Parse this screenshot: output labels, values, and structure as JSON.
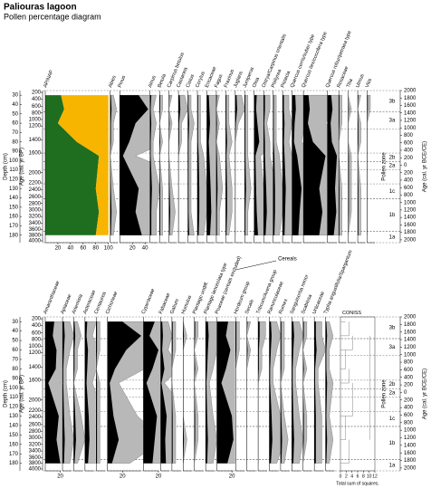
{
  "chart_data": {
    "type": "pollen",
    "title": "Paliouras lagoon",
    "subtitle": "Pollen percentage diagram",
    "depth_label": "Depth (cm)",
    "age_bp_label": "Age (cal. yr BP)",
    "age_ce_label": "Age (cal. yr BCE/CE)",
    "zone_label": "Pollen zone",
    "fill_color": "#000000",
    "exaggeration_color": "#b8b8b8",
    "depth_lim": [
      25,
      188
    ],
    "depth_ticks": [
      30,
      40,
      50,
      60,
      70,
      80,
      90,
      100,
      110,
      120,
      130,
      140,
      150,
      160,
      170,
      180
    ],
    "age_bp_ticks": [
      {
        "age": 200,
        "depth": 27
      },
      {
        "age": 400,
        "depth": 34
      },
      {
        "age": 600,
        "depth": 42
      },
      {
        "age": 800,
        "depth": 49
      },
      {
        "age": 1000,
        "depth": 56
      },
      {
        "age": 1200,
        "depth": 63
      },
      {
        "age": 1400,
        "depth": 78
      },
      {
        "age": 1600,
        "depth": 92
      },
      {
        "age": 2000,
        "depth": 113
      },
      {
        "age": 2200,
        "depth": 124
      },
      {
        "age": 2400,
        "depth": 131
      },
      {
        "age": 2600,
        "depth": 139
      },
      {
        "age": 2800,
        "depth": 146
      },
      {
        "age": 3000,
        "depth": 153
      },
      {
        "age": 3200,
        "depth": 160
      },
      {
        "age": 3400,
        "depth": 167
      },
      {
        "age": 3600,
        "depth": 174
      },
      {
        "age": 3800,
        "depth": 180
      },
      {
        "age": 4000,
        "depth": 186
      }
    ],
    "age_ce_ticks": [
      {
        "age": 2000,
        "depth": 25
      },
      {
        "age": 1800,
        "depth": 33
      },
      {
        "age": 1600,
        "depth": 41
      },
      {
        "age": 1400,
        "depth": 49
      },
      {
        "age": 1200,
        "depth": 57
      },
      {
        "age": 1000,
        "depth": 65
      },
      {
        "age": 800,
        "depth": 73
      },
      {
        "age": 600,
        "depth": 81
      },
      {
        "age": 400,
        "depth": 89
      },
      {
        "age": 200,
        "depth": 97
      },
      {
        "age": 0,
        "depth": 105
      },
      {
        "age": 200,
        "depth": 113
      },
      {
        "age": 400,
        "depth": 121
      },
      {
        "age": 600,
        "depth": 129
      },
      {
        "age": 800,
        "depth": 137
      },
      {
        "age": 1000,
        "depth": 145
      },
      {
        "age": 1200,
        "depth": 153
      },
      {
        "age": 1400,
        "depth": 161
      },
      {
        "age": 1600,
        "depth": 169
      },
      {
        "age": 1800,
        "depth": 177
      },
      {
        "age": 2000,
        "depth": 185
      }
    ],
    "zones": [
      {
        "name": "3b",
        "top": 25,
        "bottom": 48
      },
      {
        "name": "3a",
        "top": 48,
        "bottom": 66
      },
      {
        "name": "2b",
        "top": 92,
        "bottom": 101
      },
      {
        "name": "2a",
        "top": 101,
        "bottom": 110
      },
      {
        "name": "1c",
        "top": 125,
        "bottom": 141
      },
      {
        "name": "1b",
        "top": 141,
        "bottom": 176
      },
      {
        "name": "1a",
        "top": 176,
        "bottom": 188
      }
    ],
    "depths": [
      30,
      45,
      60,
      80,
      95,
      130,
      155,
      180
    ],
    "panels": [
      {
        "taxa": [
          {
            "name": "AP/NAP",
            "ap": [
              25,
              30,
              20,
              50,
              85,
              80,
              85,
              80
            ],
            "nap": [
              75,
              70,
              80,
              50,
              15,
              20,
              15,
              20
            ],
            "ap_color": "#1f6e1f",
            "nap_color": "#f7b500",
            "xticks": [
              20,
              40,
              60,
              80,
              100
            ]
          },
          {
            "name": "Abies",
            "values": [
              1,
              2,
              1,
              1,
              0,
              1,
              2,
              1
            ]
          },
          {
            "name": "Pinus",
            "values": [
              30,
              45,
              25,
              15,
              5,
              30,
              25,
              35
            ],
            "xticks": [
              20,
              40
            ]
          },
          {
            "name": "Alnus",
            "values": [
              2,
              1,
              2,
              1,
              1,
              3,
              2,
              2
            ]
          },
          {
            "name": "Betula",
            "values": [
              1,
              1,
              0,
              1,
              0,
              1,
              1,
              1
            ]
          },
          {
            "name": "Carpinus betulus",
            "values": [
              1,
              0,
              1,
              0,
              0,
              1,
              2,
              1
            ]
          },
          {
            "name": "Castanea",
            "values": [
              2,
              3,
              1,
              1,
              0,
              0,
              0,
              0
            ]
          },
          {
            "name": "Cistus",
            "values": [
              1,
              1,
              2,
              1,
              1,
              1,
              1,
              2
            ]
          },
          {
            "name": "Corylus",
            "values": [
              1,
              1,
              1,
              1,
              2,
              3,
              3,
              2
            ]
          },
          {
            "name": "Ericaceae",
            "values": [
              3,
              4,
              5,
              3,
              4,
              6,
              7,
              5
            ]
          },
          {
            "name": "Fagus",
            "values": [
              1,
              0,
              1,
              0,
              1,
              2,
              1,
              1
            ]
          },
          {
            "name": "Fraxinus",
            "values": [
              1,
              1,
              1,
              2,
              1,
              2,
              2,
              1
            ]
          },
          {
            "name": "Juglans",
            "values": [
              2,
              3,
              1,
              0,
              0,
              0,
              0,
              0
            ]
          },
          {
            "name": "Juniperus",
            "values": [
              1,
              1,
              1,
              1,
              1,
              2,
              1,
              1
            ]
          },
          {
            "name": "Olea",
            "values": [
              4,
              3,
              5,
              8,
              2,
              3,
              4,
              6
            ]
          },
          {
            "name": "Ostrya/Carpinus orientalis",
            "values": [
              2,
              2,
              1,
              2,
              2,
              4,
              5,
              3
            ]
          },
          {
            "name": "Phillyrea",
            "values": [
              1,
              1,
              1,
              1,
              2,
              3,
              3,
              2
            ]
          },
          {
            "name": "Pistacia",
            "values": [
              2,
              2,
              3,
              2,
              3,
              5,
              4,
              3
            ]
          },
          {
            "name": "Quercus cerris/suber type",
            "values": [
              5,
              6,
              4,
              3,
              8,
              15,
              12,
              10
            ]
          },
          {
            "name": "Quercus ilex/coccifera type",
            "values": [
              8,
              10,
              7,
              15,
              35,
              25,
              30,
              25
            ]
          },
          {
            "name": "Quercus robur/petraea type",
            "values": [
              6,
              8,
              5,
              7,
              15,
              12,
              14,
              10
            ]
          },
          {
            "name": "Rosaceae",
            "values": [
              1,
              1,
              1,
              0,
              0,
              1,
              1,
              1
            ]
          },
          {
            "name": "Tilia",
            "values": [
              0,
              1,
              0,
              0,
              1,
              1,
              1,
              0
            ]
          },
          {
            "name": "Ulmus",
            "values": [
              1,
              0,
              1,
              1,
              0,
              1,
              1,
              1
            ]
          },
          {
            "name": "Vitis",
            "values": [
              1,
              1,
              0,
              0,
              0,
              0,
              0,
              0
            ]
          }
        ]
      },
      {
        "taxa": [
          {
            "name": "Amaranthaceae",
            "values": [
              12,
              10,
              15,
              14,
              4,
              18,
              15,
              20
            ],
            "xticks": [
              20
            ]
          },
          {
            "name": "Apiaceae",
            "values": [
              2,
              3,
              2,
              1,
              1,
              2,
              3,
              2
            ]
          },
          {
            "name": "Artemisia",
            "values": [
              1,
              2,
              1,
              1,
              0,
              2,
              3,
              1
            ]
          },
          {
            "name": "Asteraceae",
            "values": [
              3,
              2,
              4,
              3,
              2,
              5,
              6,
              4
            ]
          },
          {
            "name": "Centaurea",
            "values": [
              1,
              1,
              1,
              0,
              1,
              1,
              1,
              1
            ]
          },
          {
            "name": "Cichorieae",
            "values": [
              20,
              45,
              25,
              10,
              3,
              8,
              15,
              6
            ],
            "xticks": [
              20
            ]
          },
          {
            "name": "Cyperaceae",
            "values": [
              15,
              8,
              20,
              12,
              4,
              18,
              15,
              12
            ],
            "xticks": [
              20
            ]
          },
          {
            "name": "Fabaceae",
            "values": [
              2,
              3,
              2,
              5,
              1,
              8,
              6,
              7
            ]
          },
          {
            "name": "Galium",
            "values": [
              1,
              1,
              1,
              0,
              0,
              1,
              1,
              1
            ]
          },
          {
            "name": "Humulus",
            "values": [
              0,
              1,
              0,
              0,
              0,
              0,
              1,
              0
            ]
          },
          {
            "name": "Plantago undiff.",
            "values": [
              1,
              1,
              0,
              1,
              0,
              1,
              1,
              0
            ]
          },
          {
            "name": "Plantago lanceolata type",
            "values": [
              3,
              4,
              3,
              2,
              1,
              2,
              3,
              2
            ]
          },
          {
            "name": "Poaceae (cereals excluded)",
            "values": [
              15,
              12,
              18,
              12,
              6,
              20,
              22,
              14
            ],
            "xticks": [
              20
            ]
          },
          {
            "name": "Hordeum group",
            "values": [
              1,
              1,
              1,
              0,
              0,
              0,
              0,
              0
            ],
            "cereal": true
          },
          {
            "name": "Secale",
            "values": [
              1,
              0,
              1,
              0,
              0,
              0,
              0,
              0
            ],
            "cereal": true
          },
          {
            "name": "Triticum/Avena group",
            "values": [
              2,
              2,
              1,
              1,
              0,
              0,
              0,
              0
            ],
            "cereal": true
          },
          {
            "name": "Ranunculaceae",
            "values": [
              2,
              3,
              2,
              1,
              1,
              3,
              4,
              2
            ]
          },
          {
            "name": "Rumex",
            "values": [
              1,
              1,
              1,
              1,
              0,
              1,
              2,
              1
            ]
          },
          {
            "name": "Sanguisorba minor",
            "values": [
              2,
              3,
              2,
              1,
              1,
              2,
              3,
              2
            ]
          },
          {
            "name": "Scabiosa",
            "values": [
              1,
              1,
              0,
              1,
              0,
              1,
              1,
              0
            ]
          },
          {
            "name": "Urticaceae",
            "values": [
              2,
              2,
              3,
              1,
              1,
              2,
              2,
              2
            ]
          },
          {
            "name": "Typha angustifolia/Sparganium",
            "values": [
              1,
              2,
              1,
              1,
              2,
              1,
              2,
              1
            ]
          }
        ],
        "cereals_label": "Cereals",
        "coniss": {
          "name": "CONISS",
          "xlabel": "Total sum of squares.",
          "xlim": [
            0,
            12
          ],
          "xticks": [
            0,
            2,
            4,
            6,
            8,
            10,
            12
          ]
        }
      }
    ]
  }
}
